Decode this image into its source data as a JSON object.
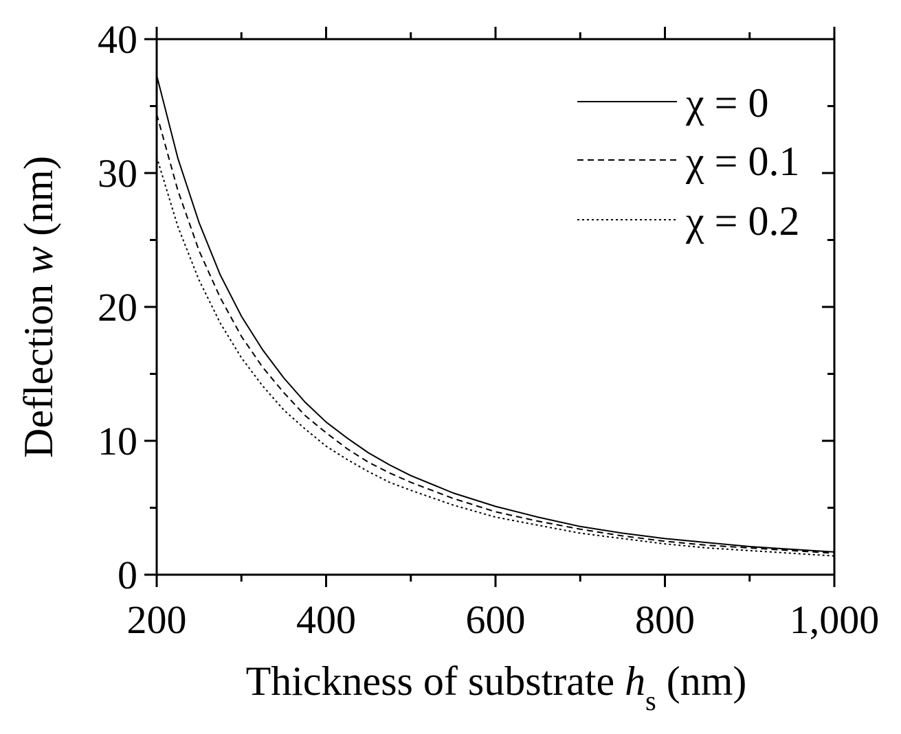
{
  "chart_data": {
    "type": "line",
    "xlabel": "Thickness of substrate",
    "xlabel_symbol": "h",
    "xlabel_subscript": "s",
    "xlabel_unit": "(nm)",
    "ylabel": "Deflection",
    "ylabel_symbol": "w",
    "ylabel_unit": "(nm)",
    "xlim": [
      200,
      1000
    ],
    "ylim": [
      0,
      40
    ],
    "xticks": [
      200,
      400,
      600,
      800,
      1000
    ],
    "xtick_labels": [
      "200",
      "400",
      "600",
      "800",
      "1,000"
    ],
    "yticks": [
      0,
      10,
      20,
      30,
      40
    ],
    "ytick_labels": [
      "0",
      "10",
      "20",
      "30",
      "40"
    ],
    "legend_position": "top-right",
    "grid": false,
    "x": [
      200,
      225,
      250,
      275,
      300,
      325,
      350,
      375,
      400,
      425,
      450,
      475,
      500,
      550,
      600,
      650,
      700,
      750,
      800,
      850,
      900,
      950,
      1000
    ],
    "series": [
      {
        "name": "χ = 0",
        "line_style": "solid",
        "values": [
          37.3,
          31.1,
          26.3,
          22.4,
          19.3,
          16.8,
          14.7,
          12.9,
          11.4,
          10.2,
          9.1,
          8.2,
          7.4,
          6.1,
          5.1,
          4.3,
          3.6,
          3.1,
          2.7,
          2.4,
          2.1,
          1.9,
          1.7
        ]
      },
      {
        "name": "χ = 0.1",
        "line_style": "dashed",
        "values": [
          34.4,
          28.7,
          24.2,
          20.7,
          17.8,
          15.5,
          13.6,
          11.9,
          10.6,
          9.4,
          8.4,
          7.6,
          6.9,
          5.7,
          4.7,
          4.0,
          3.4,
          2.9,
          2.5,
          2.2,
          2.0,
          1.8,
          1.6
        ]
      },
      {
        "name": "χ = 0.2",
        "line_style": "dotted",
        "values": [
          31.2,
          26.0,
          22.0,
          18.8,
          16.2,
          14.1,
          12.3,
          10.9,
          9.6,
          8.6,
          7.7,
          6.9,
          6.3,
          5.2,
          4.3,
          3.7,
          3.1,
          2.7,
          2.3,
          2.0,
          1.8,
          1.6,
          1.4
        ]
      }
    ]
  }
}
